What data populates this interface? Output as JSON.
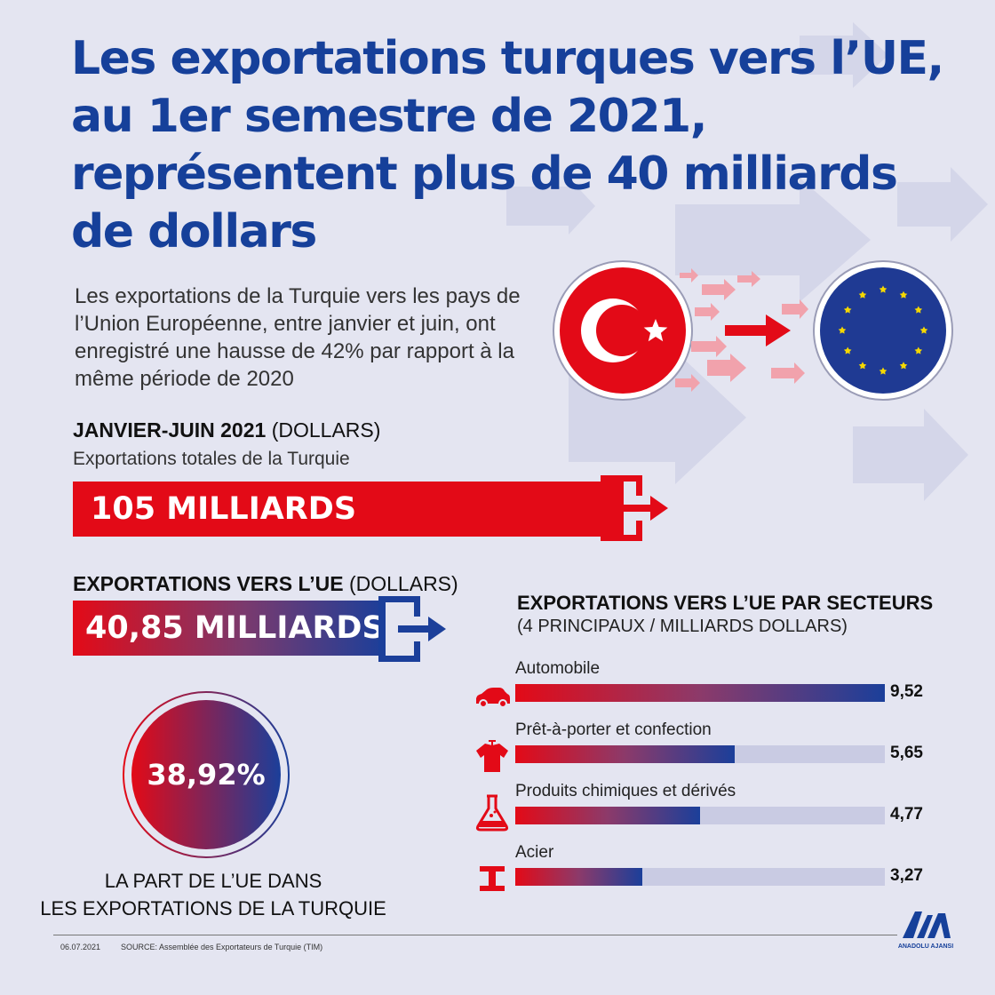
{
  "title": "Les exportations turques vers l’UE, au 1er semestre de 2021, représentent plus de 40 milliards de dollars",
  "intro": "Les exportations de la Turquie vers les pays de l’Union Européenne, entre janvier et juin, ont enregistré une hausse de 42% par rapport à la même période de 2020",
  "total": {
    "heading_bold": "JANVIER-JUIN 2021",
    "heading_unit": "(DOLLARS)",
    "subheading": "Exportations totales de la Turquie",
    "value_label": "105 MILLIARDS",
    "value": 105
  },
  "eu": {
    "heading_bold": "EXPORTATIONS VERS L’UE",
    "heading_unit": "(DOLLARS)",
    "value_label": "40,85 MILLIARDS",
    "value": 40.85
  },
  "share": {
    "percent_label": "38,92%",
    "percent": 38.92,
    "caption_line1": "LA PART DE L’UE DANS",
    "caption_line2": "LES EXPORTATIONS DE LA TURQUIE"
  },
  "colors": {
    "red": "#e30a17",
    "blue": "#1b3f9a",
    "title_blue": "#16409a",
    "track": "#c9cbe3",
    "eu_blue": "#1f3a93",
    "eu_star": "#f5d800"
  },
  "chart_data": {
    "type": "bar",
    "title": "EXPORTATIONS VERS L’UE PAR SECTEURS",
    "subtitle": "(4 PRINCIPAUX / MILLIARDS DOLLARS)",
    "categories": [
      "Automobile",
      "Prêt-à-porter et confection",
      "Produits chimiques et dérivés",
      "Acier"
    ],
    "values": [
      9.52,
      5.65,
      4.77,
      3.27
    ],
    "value_labels": [
      "9,52",
      "5,65",
      "4,77",
      "3,27"
    ],
    "icons": [
      "car-icon",
      "shirt-icon",
      "flask-icon",
      "steel-beam-icon"
    ],
    "xlim": [
      0,
      9.52
    ],
    "orientation": "horizontal",
    "grid": false
  },
  "footer": {
    "date": "06.07.2021",
    "source": "SOURCE: Assemblée des Exportateurs de Turquie (TIM)",
    "logo_text": "ANADOLU AJANSI"
  }
}
